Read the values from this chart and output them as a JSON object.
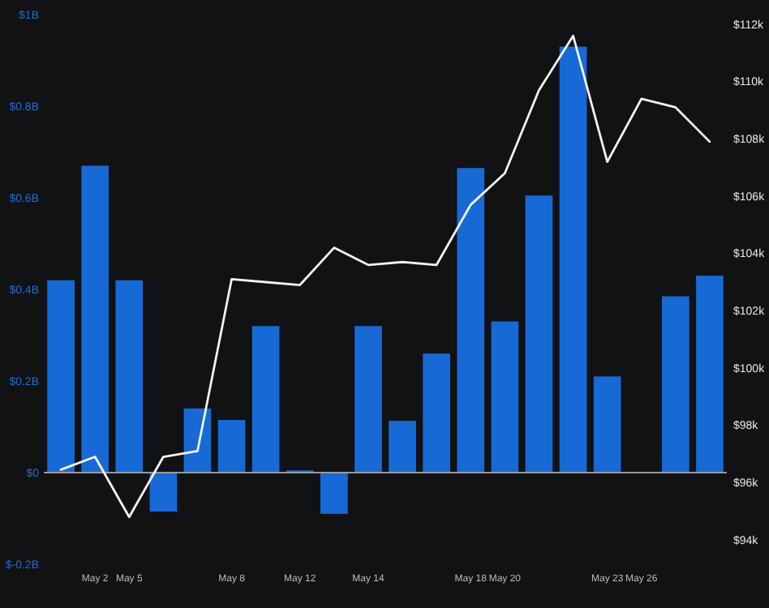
{
  "chart_data": {
    "type": "bar",
    "categories": [
      null,
      "May 2",
      "May 5",
      null,
      null,
      "May 8",
      null,
      "May 12",
      null,
      "May 14",
      null,
      null,
      "May 18",
      "May 20",
      null,
      null,
      "May 23",
      "May 26",
      null,
      null
    ],
    "series": [
      {
        "color": "#1769d6",
        "values": [
          0.42,
          0.67,
          0.42,
          -0.085,
          0.14,
          0.115,
          0.32,
          0.005,
          -0.09,
          0.32,
          0.113,
          0.26,
          0.665,
          0.33,
          0.605,
          0.93,
          0.21,
          null,
          0.385,
          0.43
        ]
      },
      {
        "type": "line",
        "axis": "y2",
        "color": "#f2f2f2",
        "values": [
          96.45,
          96.9,
          94.8,
          96.9,
          97.1,
          103.1,
          103.0,
          102.9,
          104.2,
          103.6,
          103.7,
          103.6,
          105.7,
          106.8,
          109.7,
          111.6,
          107.2,
          109.4,
          109.1,
          107.9
        ]
      }
    ],
    "ylim": [
      -0.2,
      1
    ],
    "yticks": [
      {
        "value": -0.2,
        "label": "$-0.2B"
      },
      {
        "value": 0,
        "label": "$0"
      },
      {
        "value": 0.2,
        "label": "$0.2B"
      },
      {
        "value": 0.4,
        "label": "$0.4B"
      },
      {
        "value": 0.6,
        "label": "$0.6B"
      },
      {
        "value": 0.8,
        "label": "$0.8B"
      },
      {
        "value": 1,
        "label": "$1B"
      }
    ],
    "y2lim": [
      94,
      112
    ],
    "y2ticks": [
      {
        "value": 94,
        "label": "$94k"
      },
      {
        "value": 96,
        "label": "$96k"
      },
      {
        "value": 98,
        "label": "$98k"
      },
      {
        "value": 100,
        "label": "$100k"
      },
      {
        "value": 102,
        "label": "$102k"
      },
      {
        "value": 104,
        "label": "$104k"
      },
      {
        "value": 106,
        "label": "$106k"
      },
      {
        "value": 108,
        "label": "$108k"
      },
      {
        "value": 110,
        "label": "$110k"
      },
      {
        "value": 112,
        "label": "$112k"
      }
    ],
    "ref_lines": [
      {
        "axis": "y",
        "value": 0,
        "color": "#9a9a9a"
      }
    ],
    "grid": false,
    "marker": "none",
    "line_style": "solid"
  }
}
